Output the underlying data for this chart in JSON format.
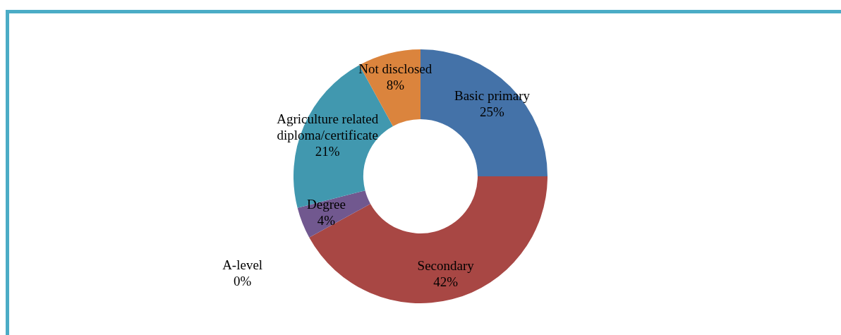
{
  "chart_data": {
    "type": "donut",
    "categories": [
      "Basic primary",
      "Secondary",
      "A-level",
      "Degree",
      "Agriculture related diploma/certificate",
      "Not disclosed"
    ],
    "values": [
      25,
      42,
      0,
      4,
      21,
      8
    ],
    "colors": [
      "#4472a8",
      "#a84744",
      "#89a54e",
      "#71588f",
      "#4198af",
      "#db843d"
    ],
    "value_labels": [
      "25%",
      "42%",
      "0%",
      "4%",
      "21%",
      "8%"
    ],
    "legend": false
  }
}
